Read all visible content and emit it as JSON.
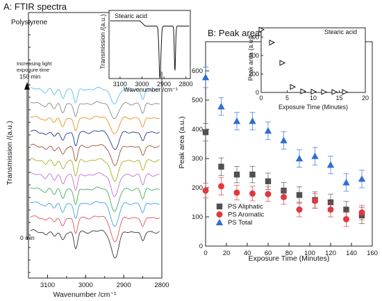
{
  "panelA": {
    "title": "A: FTIR spectra",
    "sample_label": "Polystyrene",
    "annotation_line1": "Increasing light",
    "annotation_line2": "exposure time",
    "top_time": "150 min",
    "bottom_time": "0 min",
    "ylabel": "Transmission /(a.u.)",
    "xlabel": "Wavenumber /cm⁻¹",
    "xticks": [
      "3100",
      "3000",
      "2900",
      "2800"
    ],
    "inset": {
      "title": "Stearic acid",
      "ylabel": "Transmission /(a.u.)",
      "xlabel": "Wavenumber /cm⁻¹",
      "xticks": [
        "3100",
        "3000",
        "2900",
        "2800"
      ]
    }
  },
  "panelB": {
    "title": "B: Peak areas",
    "ylabel": "Peak area (a.u.)",
    "xlabel": "Exposure Time (Minutes)",
    "xticks": [
      "0",
      "20",
      "40",
      "60",
      "80",
      "100",
      "120",
      "140",
      "160"
    ],
    "yticks": [
      "0",
      "100",
      "200",
      "300",
      "400",
      "500",
      "600"
    ],
    "inset": {
      "title": "Stearic acid",
      "ylabel": "Peak area (a.u.)",
      "xlabel": "Exposure Time (Minutes)",
      "xticks": [
        "0",
        "5",
        "10",
        "15",
        "20"
      ],
      "yticks": [
        "0",
        "200",
        "400",
        "600"
      ]
    }
  },
  "chart_data": [
    {
      "type": "line",
      "title": "A: FTIR spectra",
      "subtitle": "Polystyrene",
      "xlabel": "Wavenumber /cm⁻¹",
      "ylabel": "Transmission /(a.u.)",
      "xlim": [
        3150,
        2800
      ],
      "x_reversed": true,
      "num_spectra": 11,
      "time_range_min": [
        0,
        150
      ],
      "spectrum_colors": [
        "#333333",
        "#e05050",
        "#3fa0e0",
        "#3cb050",
        "#c070d0",
        "#a8b020",
        "#a05030",
        "#1e3a8a",
        "#e89020",
        "#888888",
        "#58c0e8"
      ],
      "peaks_wavenumber": [
        3082,
        3060,
        3026,
        2923,
        2850
      ],
      "peak_depths": [
        0.35,
        0.45,
        1.0,
        1.45,
        0.6
      ]
    },
    {
      "type": "line",
      "title": "Stearic acid",
      "xlabel": "Wavenumber /cm⁻¹",
      "ylabel": "Transmission /(a.u.)",
      "xlim": [
        3150,
        2780
      ],
      "peaks_wavenumber": [
        2918,
        2850
      ]
    },
    {
      "type": "scatter",
      "title": "B: Peak areas",
      "xlabel": "Exposure Time (Minutes)",
      "ylabel": "Peak area (a.u.)",
      "xlim": [
        0,
        160
      ],
      "ylim": [
        0,
        700
      ],
      "legend_position": "bottom-left",
      "series": [
        {
          "name": "PS Aliphatic",
          "color": "#505050",
          "marker": "square",
          "x": [
            0,
            15,
            30,
            45,
            60,
            75,
            90,
            105,
            120,
            135,
            150
          ],
          "y": [
            390,
            272,
            245,
            245,
            222,
            190,
            175,
            158,
            150,
            125,
            105
          ],
          "err": [
            30,
            30,
            28,
            28,
            28,
            28,
            28,
            28,
            28,
            28,
            28
          ]
        },
        {
          "name": "PS Aromatic",
          "color": "#e0393e",
          "marker": "circle",
          "x": [
            0,
            15,
            30,
            45,
            60,
            75,
            90,
            105,
            120,
            135,
            150
          ],
          "y": [
            190,
            205,
            183,
            180,
            178,
            168,
            125,
            155,
            125,
            92,
            115
          ],
          "err": [
            25,
            30,
            25,
            25,
            25,
            25,
            25,
            25,
            25,
            25,
            25
          ]
        },
        {
          "name": "PS Total",
          "color": "#2f6fd0",
          "marker": "triangle",
          "x": [
            0,
            15,
            30,
            45,
            60,
            75,
            90,
            105,
            120,
            135,
            150
          ],
          "y": [
            578,
            478,
            428,
            428,
            395,
            362,
            300,
            308,
            278,
            218,
            230
          ],
          "err": [
            35,
            30,
            30,
            30,
            30,
            30,
            30,
            30,
            30,
            30,
            30
          ]
        }
      ]
    },
    {
      "type": "scatter",
      "title": "Stearic acid",
      "xlabel": "Exposure Time (Minutes)",
      "ylabel": "Peak area (a.u.)",
      "xlim": [
        0,
        20
      ],
      "ylim": [
        0,
        700
      ],
      "series": [
        {
          "marker": "triangle-right",
          "color": "#111111",
          "x": [
            0,
            2,
            4,
            6,
            8,
            10,
            12,
            14,
            16
          ],
          "y": [
            680,
            540,
            320,
            60,
            12,
            8,
            5,
            5,
            5
          ]
        }
      ]
    }
  ]
}
